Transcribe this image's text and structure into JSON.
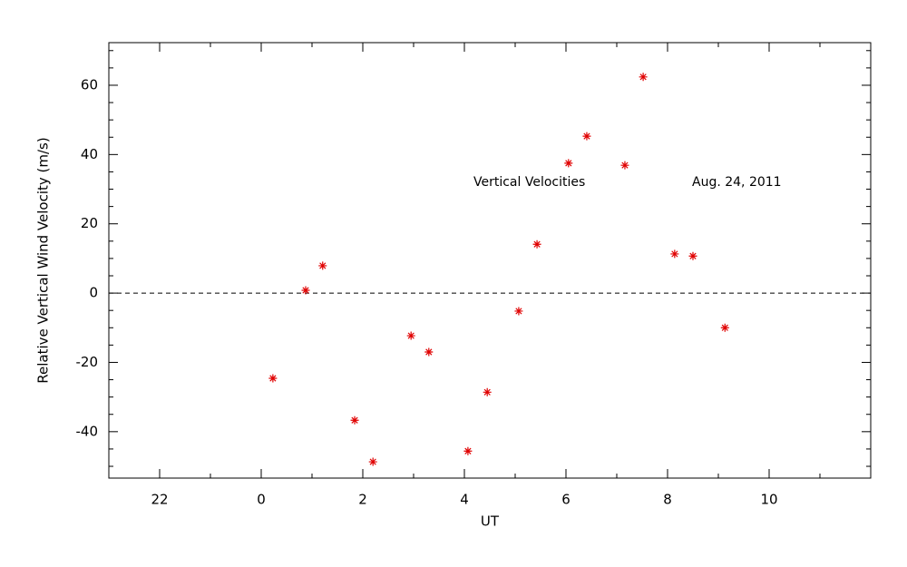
{
  "chart_data": {
    "type": "scatter",
    "xlabel": "UT",
    "ylabel": "Relative Vertical Wind Velocity (m/s)",
    "annotations": [
      "Vertical Velocities",
      "Aug. 24, 2011"
    ],
    "series": [
      {
        "color": "#e00000",
        "x": [
          0.23,
          0.875,
          1.21,
          1.84,
          2.2,
          2.95,
          3.3,
          4.07,
          4.45,
          5.07,
          5.43,
          6.05,
          6.41,
          7.16,
          7.52,
          8.14,
          8.5,
          9.13
        ],
        "values": [
          -24.6,
          0.8,
          7.9,
          -36.7,
          -48.7,
          -12.3,
          -17.0,
          -45.6,
          -28.6,
          -5.2,
          14.1,
          37.5,
          45.3,
          36.9,
          62.4,
          11.3,
          10.7,
          -10.0
        ]
      }
    ],
    "hline": 0,
    "xlim": [
      -3,
      12
    ],
    "ylim": [
      -53.4,
      72.3
    ],
    "xticks": [
      {
        "value": -2,
        "label": "22"
      },
      0,
      2,
      4,
      6,
      8,
      10
    ],
    "xminor": [
      -1,
      1,
      3,
      5,
      7,
      9,
      11
    ],
    "yticks": [
      -40,
      -20,
      0,
      20,
      40,
      60
    ],
    "yminor": [
      -50,
      -45,
      -35,
      -30,
      -25,
      -15,
      -10,
      -5,
      5,
      10,
      15,
      25,
      30,
      35,
      45,
      50,
      55,
      65,
      70
    ]
  }
}
